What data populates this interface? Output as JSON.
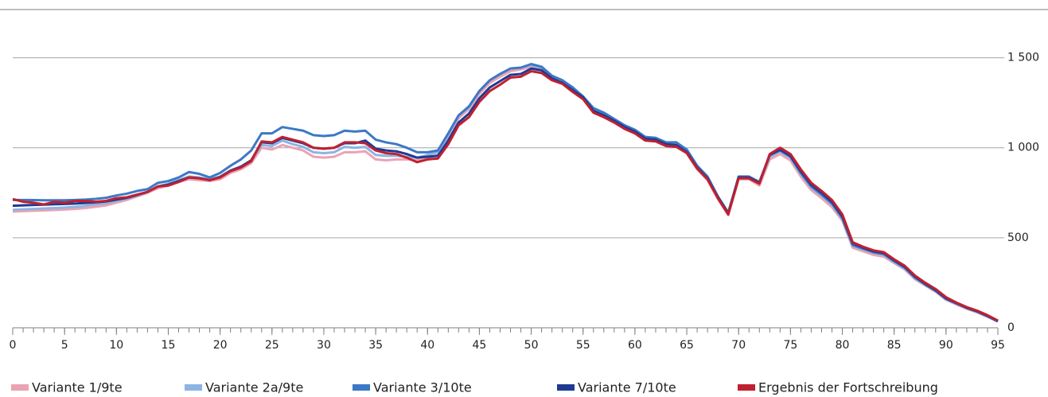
{
  "chart_data": {
    "type": "line",
    "x": [
      0,
      1,
      2,
      3,
      4,
      5,
      6,
      7,
      8,
      9,
      10,
      11,
      12,
      13,
      14,
      15,
      16,
      17,
      18,
      19,
      20,
      21,
      22,
      23,
      24,
      25,
      26,
      27,
      28,
      29,
      30,
      31,
      32,
      33,
      34,
      35,
      36,
      37,
      38,
      39,
      40,
      41,
      42,
      43,
      44,
      45,
      46,
      47,
      48,
      49,
      50,
      51,
      52,
      53,
      54,
      55,
      56,
      57,
      58,
      59,
      60,
      61,
      62,
      63,
      64,
      65,
      66,
      67,
      68,
      69,
      70,
      71,
      72,
      73,
      74,
      75,
      76,
      77,
      78,
      79,
      80,
      81,
      82,
      83,
      84,
      85,
      86,
      87,
      88,
      89,
      90,
      91,
      92,
      93,
      94,
      95
    ],
    "xlim": [
      0,
      95
    ],
    "xticks": [
      0,
      5,
      10,
      15,
      20,
      25,
      30,
      35,
      40,
      45,
      50,
      55,
      60,
      65,
      70,
      75,
      80,
      85,
      90,
      95
    ],
    "ylim": [
      0,
      1750
    ],
    "yticks": [
      0,
      500,
      {
        "value": 1000,
        "label": "1 000"
      },
      {
        "value": 1500,
        "label": "1 500"
      }
    ],
    "grid": true,
    "legend": "bottom",
    "series": [
      {
        "name": "Variante 1/9te",
        "color": "#eba3b3",
        "values": [
          645,
          648,
          650,
          652,
          654,
          657,
          660,
          665,
          672,
          680,
          695,
          710,
          730,
          750,
          775,
          790,
          810,
          825,
          820,
          815,
          825,
          860,
          880,
          915,
          1000,
          990,
          1015,
          1000,
          985,
          950,
          945,
          950,
          975,
          975,
          980,
          935,
          930,
          935,
          935,
          930,
          945,
          960,
          1050,
          1165,
          1215,
          1300,
          1360,
          1395,
          1425,
          1435,
          1450,
          1435,
          1390,
          1365,
          1320,
          1275,
          1205,
          1180,
          1145,
          1110,
          1085,
          1045,
          1040,
          1015,
          1010,
          970,
          880,
          820,
          715,
          625,
          825,
          825,
          790,
          935,
          965,
          930,
          840,
          765,
          720,
          670,
          595,
          445,
          425,
          405,
          395,
          360,
          325,
          270,
          235,
          200,
          155,
          130,
          105,
          85,
          60,
          35
        ]
      },
      {
        "name": "Variante 2a/9te",
        "color": "#8db4e2",
        "values": [
          655,
          658,
          660,
          663,
          665,
          668,
          672,
          678,
          685,
          692,
          705,
          718,
          735,
          755,
          785,
          800,
          820,
          840,
          835,
          825,
          840,
          875,
          895,
          930,
          1015,
          1010,
          1040,
          1020,
          1005,
          975,
          970,
          975,
          1005,
          1000,
          1005,
          960,
          955,
          955,
          950,
          945,
          960,
          975,
          1075,
          1180,
          1225,
          1315,
          1375,
          1410,
          1440,
          1445,
          1460,
          1445,
          1400,
          1375,
          1330,
          1285,
          1215,
          1190,
          1155,
          1120,
          1095,
          1055,
          1050,
          1025,
          1025,
          985,
          895,
          835,
          725,
          635,
          835,
          835,
          805,
          950,
          980,
          945,
          855,
          780,
          735,
          685,
          605,
          455,
          435,
          415,
          405,
          365,
          330,
          275,
          240,
          205,
          160,
          135,
          110,
          90,
          62,
          37
        ]
      },
      {
        "name": "Variante 3/10te",
        "color": "#3c78c6",
        "values": [
          710,
          710,
          709,
          708,
          708,
          708,
          710,
          712,
          716,
          722,
          735,
          745,
          760,
          770,
          805,
          815,
          835,
          865,
          855,
          835,
          860,
          900,
          935,
          985,
          1080,
          1080,
          1115,
          1105,
          1095,
          1070,
          1065,
          1070,
          1095,
          1090,
          1095,
          1045,
          1030,
          1020,
          1000,
          975,
          975,
          985,
          1080,
          1180,
          1230,
          1315,
          1375,
          1410,
          1440,
          1445,
          1465,
          1450,
          1400,
          1375,
          1335,
          1285,
          1220,
          1195,
          1160,
          1125,
          1100,
          1060,
          1055,
          1030,
          1030,
          990,
          900,
          840,
          730,
          640,
          840,
          840,
          810,
          960,
          985,
          950,
          860,
          785,
          740,
          690,
          610,
          460,
          440,
          420,
          410,
          370,
          335,
          280,
          240,
          205,
          160,
          135,
          110,
          90,
          65,
          35
        ]
      },
      {
        "name": "Variante 7/10te",
        "color": "#1f3a93",
        "values": [
          678,
          680,
          682,
          684,
          686,
          688,
          690,
          693,
          697,
          702,
          712,
          722,
          738,
          755,
          785,
          795,
          815,
          835,
          830,
          820,
          838,
          872,
          895,
          930,
          1030,
          1025,
          1055,
          1040,
          1025,
          1000,
          995,
          1000,
          1025,
          1025,
          1040,
          995,
          985,
          980,
          965,
          945,
          950,
          955,
          1040,
          1140,
          1190,
          1275,
          1335,
          1370,
          1405,
          1410,
          1440,
          1430,
          1385,
          1360,
          1320,
          1280,
          1205,
          1180,
          1150,
          1115,
          1090,
          1050,
          1045,
          1020,
          1015,
          975,
          890,
          830,
          725,
          635,
          835,
          835,
          805,
          960,
          990,
          955,
          870,
          795,
          750,
          700,
          620,
          470,
          445,
          425,
          415,
          375,
          340,
          285,
          245,
          210,
          165,
          138,
          112,
          92,
          67,
          38
        ]
      },
      {
        "name": "Ergebnis der Fortschreibung",
        "color": "#c0202f",
        "values": [
          715,
          700,
          695,
          685,
          700,
          695,
          705,
          705,
          700,
          705,
          720,
          725,
          740,
          755,
          785,
          790,
          810,
          835,
          830,
          820,
          835,
          870,
          890,
          925,
          1035,
          1030,
          1060,
          1045,
          1030,
          1000,
          995,
          1000,
          1030,
          1030,
          1025,
          985,
          970,
          965,
          945,
          920,
          935,
          940,
          1020,
          1125,
          1170,
          1255,
          1315,
          1350,
          1390,
          1395,
          1425,
          1415,
          1375,
          1355,
          1310,
          1270,
          1195,
          1170,
          1140,
          1105,
          1080,
          1040,
          1035,
          1010,
          1005,
          970,
          885,
          825,
          720,
          630,
          830,
          830,
          800,
          965,
          1000,
          965,
          880,
          805,
          760,
          710,
          630,
          475,
          450,
          430,
          420,
          380,
          345,
          290,
          250,
          215,
          170,
          140,
          115,
          95,
          70,
          40
        ]
      }
    ]
  }
}
